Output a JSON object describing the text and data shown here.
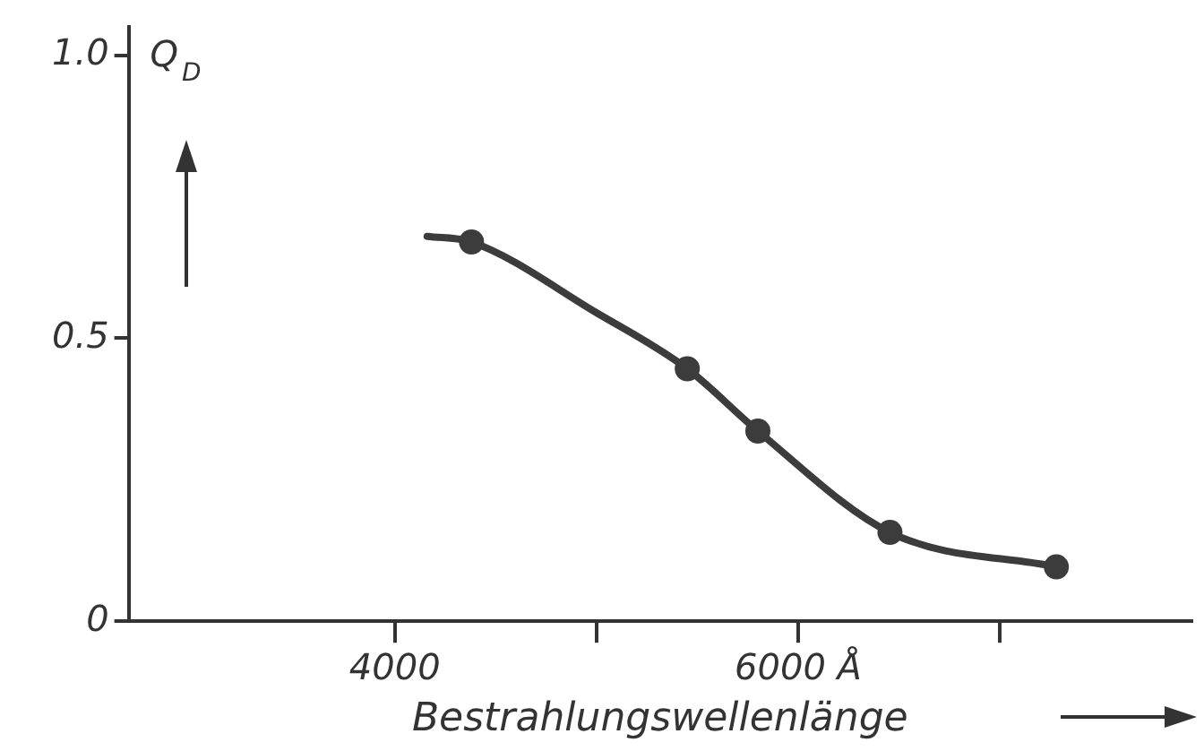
{
  "chart_data": {
    "type": "line",
    "xlabel": "Bestrahlungswellenlänge",
    "ylabel": "Q$_{D}$",
    "xlim": [
      2680,
      7950
    ],
    "ylim": [
      0,
      1.05
    ],
    "xticks": [
      {
        "value": 4000,
        "label": "4000"
      },
      {
        "value": 5000,
        "label": null
      },
      {
        "value": 6000,
        "label": "6000 Å"
      },
      {
        "value": 7000,
        "label": null
      }
    ],
    "yticks": [
      {
        "value": 0,
        "label": "0"
      },
      {
        "value": 0.5,
        "label": "0.5"
      },
      {
        "value": 1,
        "label": "1.0"
      }
    ],
    "grid": false,
    "legend": false,
    "series": [
      {
        "type": "line",
        "color": "#3c3c3c",
        "marker": "none",
        "x": [
          4160,
          4380,
          5000,
          5450,
          5800,
          6455,
          7280
        ],
        "values": [
          0.68,
          0.67,
          0.545,
          0.446,
          0.336,
          0.157,
          0.096
        ]
      },
      {
        "type": "scatter",
        "color": "#3c3c3c",
        "marker": "circle",
        "x": [
          4380,
          5450,
          5800,
          6455,
          7280
        ],
        "values": [
          0.67,
          0.446,
          0.336,
          0.157,
          0.096
        ]
      }
    ]
  }
}
